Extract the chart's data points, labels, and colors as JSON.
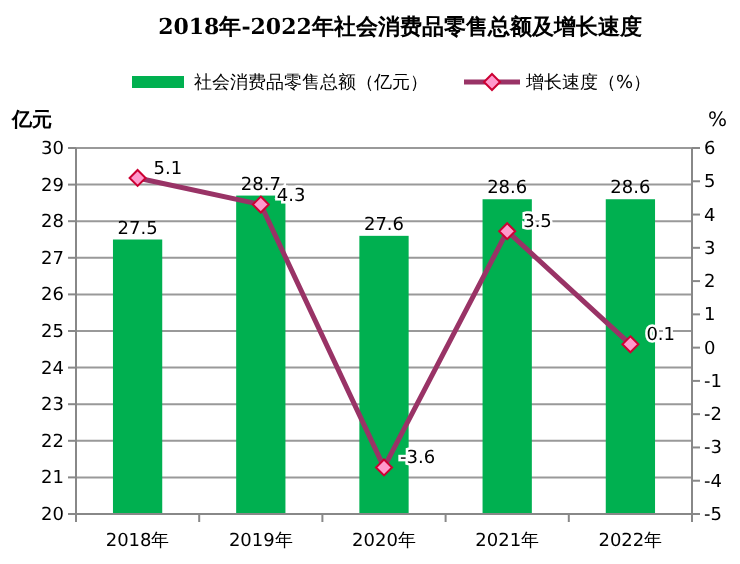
{
  "chart_data": {
    "type": "bar",
    "title": "2018年-2022年社会消费品零售总额及增长速度",
    "ylabel": "亿元",
    "y2label": "%",
    "categories": [
      "2018年",
      "2019年",
      "2020年",
      "2021年",
      "2022年"
    ],
    "series": [
      {
        "name": "社会消费品零售总额（亿元）",
        "color": "#00b050",
        "values": [
          27.5,
          28.7,
          27.6,
          28.6,
          28.6
        ]
      },
      {
        "name": "增长速度（%）",
        "type": "line",
        "axis": "y2",
        "color": "#993366",
        "marker": "diamond",
        "values": [
          5.1,
          4.3,
          -3.6,
          3.5,
          0.1
        ]
      }
    ],
    "ylim": [
      20,
      30
    ],
    "yticks": [
      20,
      21,
      22,
      23,
      24,
      25,
      26,
      27,
      28,
      29,
      30
    ],
    "y2lim": [
      -5,
      6
    ],
    "y2ticks": [
      -5,
      -4,
      -3,
      -2,
      -1,
      0,
      1,
      2,
      3,
      4,
      5,
      6
    ],
    "grid": "y",
    "legend": "top",
    "data_labels": true
  }
}
